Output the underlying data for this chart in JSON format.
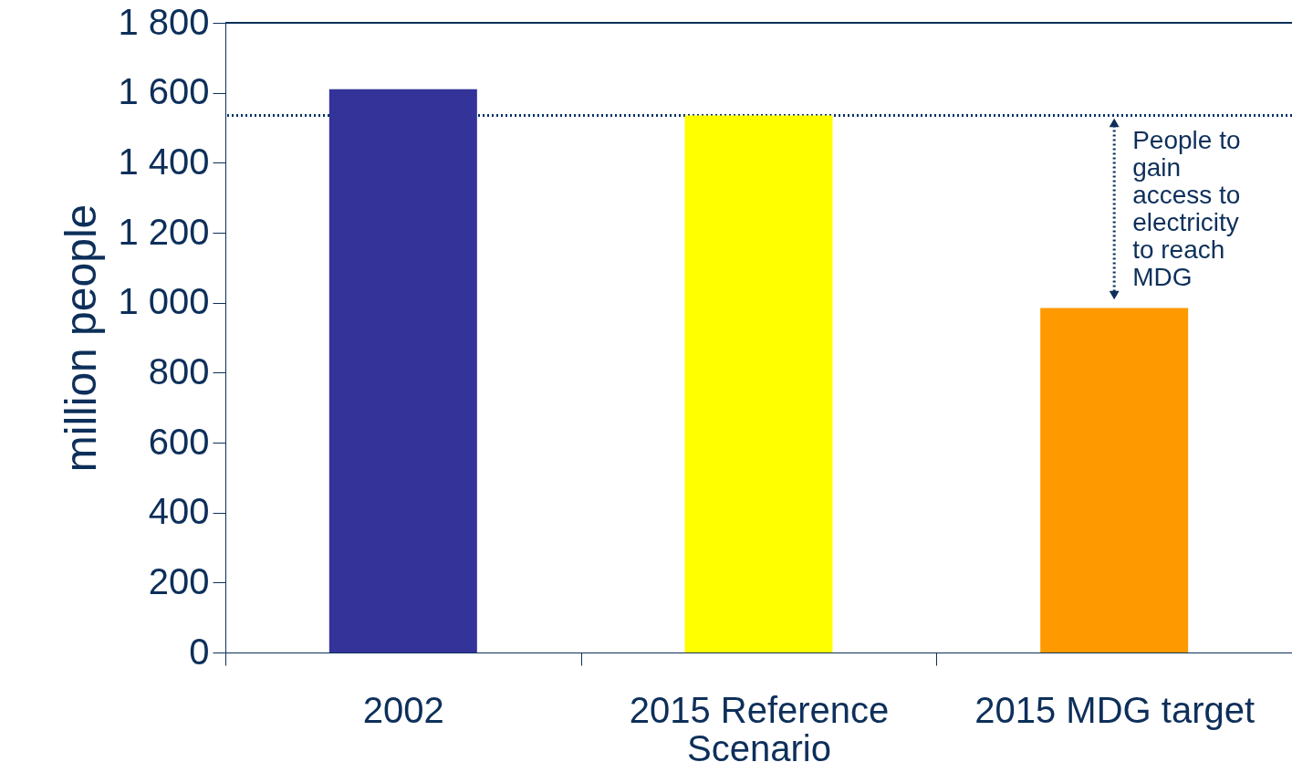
{
  "chart_data": {
    "type": "bar",
    "ylabel": "million people",
    "categories": [
      "2002",
      "2015 Reference Scenario",
      "2015 MDG target"
    ],
    "values": [
      1610,
      1535,
      985
    ],
    "colors": [
      "#333399",
      "#ffff00",
      "#ff9900"
    ],
    "ylim": [
      0,
      1800
    ],
    "yticks": [
      {
        "value": 0,
        "label": "0"
      },
      {
        "value": 200,
        "label": "200"
      },
      {
        "value": 400,
        "label": "400"
      },
      {
        "value": 600,
        "label": "600"
      },
      {
        "value": 800,
        "label": "800"
      },
      {
        "value": 1000,
        "label": "1 000"
      },
      {
        "value": 1200,
        "label": "1 200"
      },
      {
        "value": 1400,
        "label": "1 400"
      },
      {
        "value": 1600,
        "label": "1 600"
      },
      {
        "value": 1800,
        "label": "1 800"
      }
    ],
    "grid": false,
    "ref_lines": [
      {
        "axis": "y",
        "value": 1535,
        "color": "#003366",
        "line_style": "dotted"
      }
    ],
    "annotations": [
      {
        "text": "People to gain access to electricity to reach MDG",
        "x": "2015 MDG target",
        "y": 1535
      }
    ]
  }
}
